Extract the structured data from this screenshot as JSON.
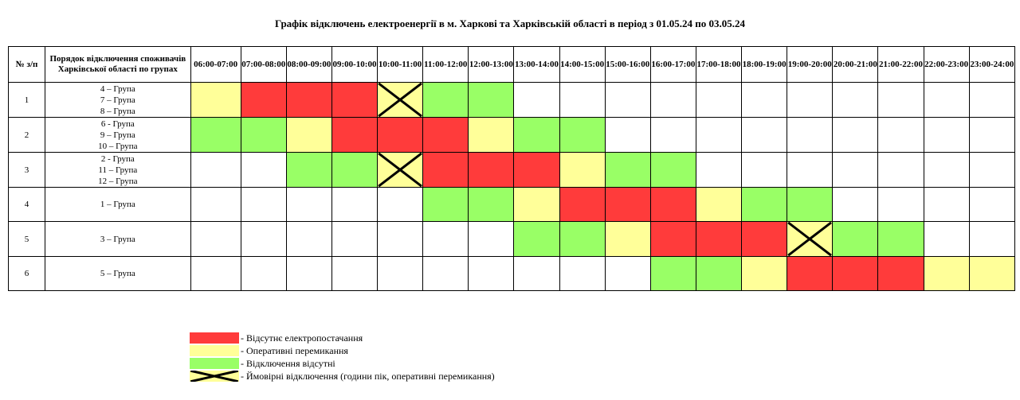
{
  "title": "Графік відключень електроенергії в м. Харкові та Харківській області в період з 01.05.24 по 03.05.24",
  "header": {
    "num": "№ з/п",
    "order": "Порядок відключення споживачів Харківської області по групах",
    "hours": [
      "06:00-07:00",
      "07:00-08:00",
      "08:00-09:00",
      "09:00-10:00",
      "10:00-11:00",
      "11:00-12:00",
      "12:00-13:00",
      "13:00-14:00",
      "14:00-15:00",
      "15:00-16:00",
      "16:00-17:00",
      "17:00-18:00",
      "18:00-19:00",
      "19:00-20:00",
      "20:00-21:00",
      "21:00-22:00",
      "22:00-23:00",
      "23:00-24:00"
    ]
  },
  "rows": [
    {
      "num": "1",
      "groups": [
        "4 – Група",
        "7 – Група",
        "8 – Група"
      ],
      "cells": [
        "Y",
        "R",
        "R",
        "R",
        "YX",
        "G",
        "G",
        "W",
        "W",
        "W",
        "W",
        "W",
        "W",
        "W",
        "W",
        "W",
        "W",
        "W"
      ]
    },
    {
      "num": "2",
      "groups": [
        "6 - Група",
        "9 – Група",
        "10 – Група"
      ],
      "cells": [
        "G",
        "G",
        "Y",
        "R",
        "R",
        "R",
        "Y",
        "G",
        "G",
        "W",
        "W",
        "W",
        "W",
        "W",
        "W",
        "W",
        "W",
        "W"
      ]
    },
    {
      "num": "3",
      "groups": [
        "2 - Група",
        "11 – Група",
        "12 – Група"
      ],
      "cells": [
        "W",
        "W",
        "G",
        "G",
        "YX",
        "R",
        "R",
        "R",
        "Y",
        "G",
        "G",
        "W",
        "W",
        "W",
        "W",
        "W",
        "W",
        "W"
      ]
    },
    {
      "num": "4",
      "groups": [
        "1 – Група"
      ],
      "cells": [
        "W",
        "W",
        "W",
        "W",
        "W",
        "G",
        "G",
        "Y",
        "R",
        "R",
        "R",
        "Y",
        "G",
        "G",
        "W",
        "W",
        "W",
        "W"
      ]
    },
    {
      "num": "5",
      "groups": [
        "3 – Група"
      ],
      "cells": [
        "W",
        "W",
        "W",
        "W",
        "W",
        "W",
        "W",
        "G",
        "G",
        "Y",
        "R",
        "R",
        "R",
        "YX",
        "G",
        "G",
        "W",
        "W"
      ]
    },
    {
      "num": "6",
      "groups": [
        "5 – Група"
      ],
      "cells": [
        "W",
        "W",
        "W",
        "W",
        "W",
        "W",
        "W",
        "W",
        "W",
        "W",
        "G",
        "G",
        "Y",
        "R",
        "R",
        "R",
        "Y",
        "Y"
      ]
    }
  ],
  "colors": {
    "R": "#ff3b3b",
    "Y": "#ffff99",
    "G": "#99ff66"
  },
  "legend": [
    {
      "key": "R",
      "label": "- Відсутнє електропостачання"
    },
    {
      "key": "Y",
      "label": "- Оперативні перемикання"
    },
    {
      "key": "G",
      "label": "- Відключення відсутні"
    },
    {
      "key": "YX",
      "label": "- Ймовірні відключення (години пік, оперативні перемикання)"
    }
  ]
}
